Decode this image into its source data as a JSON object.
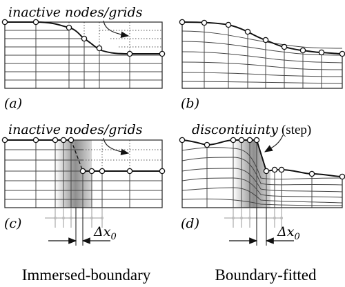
{
  "panels": {
    "a": {
      "tag": "(a)",
      "note": "inactive nodes/grids"
    },
    "b": {
      "tag": "(b)"
    },
    "c": {
      "tag": "(c)",
      "note": "inactive nodes/grids",
      "dx_label": "Δx",
      "dx_sub": "0"
    },
    "d": {
      "tag": "(d)",
      "note_main": "discontiuinty",
      "note_paren": "(step)",
      "dx_label": "Δx",
      "dx_sub": "0"
    }
  },
  "footer": {
    "left": "Immersed-boundary",
    "right": "Boundary-fitted"
  }
}
